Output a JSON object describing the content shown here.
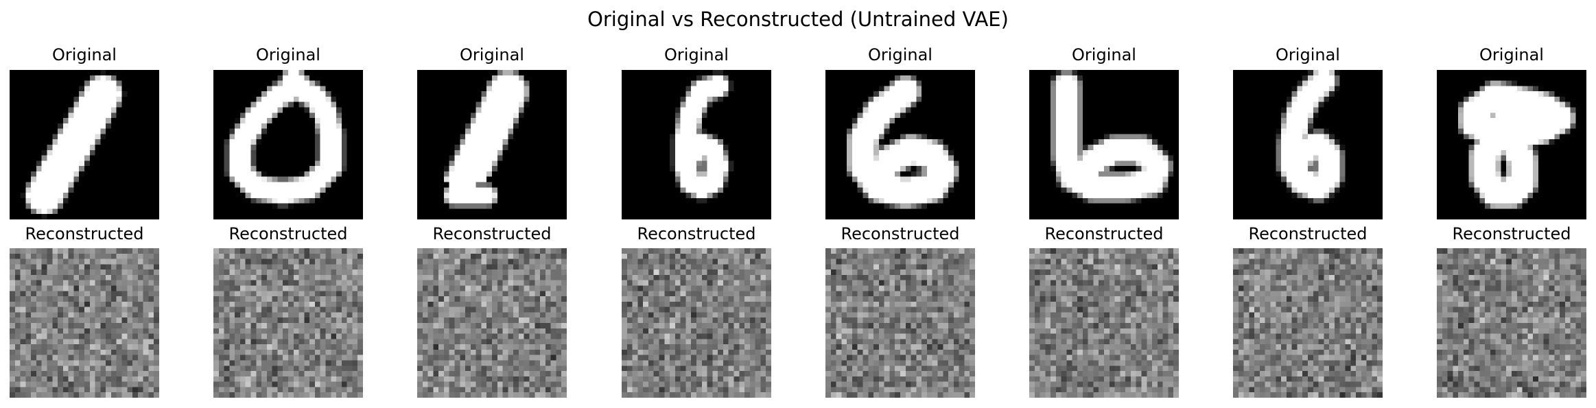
{
  "figure": {
    "title": "Original vs Reconstructed (Untrained VAE)"
  },
  "rows": [
    {
      "kind": "original",
      "label": "Original",
      "panels": [
        {
          "digit": 1
        },
        {
          "digit": 0
        },
        {
          "digit": 1
        },
        {
          "digit": 6
        },
        {
          "digit": 6
        },
        {
          "digit": 6
        },
        {
          "digit": 6
        },
        {
          "digit": 8
        }
      ]
    },
    {
      "kind": "reconstructed",
      "label": "Reconstructed",
      "panels": [
        {},
        {},
        {},
        {},
        {},
        {},
        {},
        {}
      ]
    }
  ],
  "colors": {
    "background": "#ffffff",
    "cmap": "gray"
  }
}
